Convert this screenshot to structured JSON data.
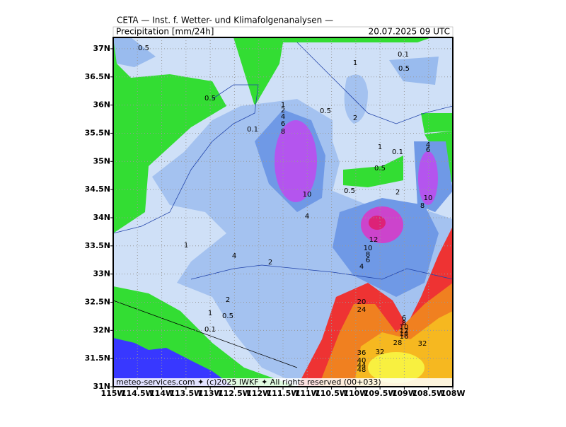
{
  "header": {
    "title": "CETA — Inst. f. Wetter- und Klimafolgenanalysen —",
    "variable": "Precipitation [mm/24h]",
    "valid_time": "20.07.2025 09 UTC"
  },
  "footer": "meteo-services.com ✦ (c)2025 IWKF ✦ All rights reserved (00+033)",
  "map": {
    "xlim": [
      -115,
      -108
    ],
    "ylim": [
      31,
      37.2
    ],
    "xticks": [
      {
        "value": -115,
        "label": "115W"
      },
      {
        "value": -114.5,
        "label": "114.5W"
      },
      {
        "value": -114,
        "label": "114W"
      },
      {
        "value": -113.5,
        "label": "113.5W"
      },
      {
        "value": -113,
        "label": "113W"
      },
      {
        "value": -112.5,
        "label": "112.5W"
      },
      {
        "value": -112,
        "label": "112W"
      },
      {
        "value": -111.5,
        "label": "111.5W"
      },
      {
        "value": -111,
        "label": "111W"
      },
      {
        "value": -110.5,
        "label": "110.5W"
      },
      {
        "value": -110,
        "label": "110W"
      },
      {
        "value": -109.5,
        "label": "109.5W"
      },
      {
        "value": -109,
        "label": "109W"
      },
      {
        "value": -108.5,
        "label": "108.5W"
      },
      {
        "value": -108,
        "label": "108W"
      }
    ],
    "yticks": [
      {
        "value": 31,
        "label": "31N"
      },
      {
        "value": 31.5,
        "label": "31.5N"
      },
      {
        "value": 32,
        "label": "32N"
      },
      {
        "value": 32.5,
        "label": "32.5N"
      },
      {
        "value": 33,
        "label": "33N"
      },
      {
        "value": 33.5,
        "label": "33.5N"
      },
      {
        "value": 34,
        "label": "34N"
      },
      {
        "value": 34.5,
        "label": "34.5N"
      },
      {
        "value": 35,
        "label": "35N"
      },
      {
        "value": 35.5,
        "label": "35.5N"
      },
      {
        "value": 36,
        "label": "36N"
      },
      {
        "value": 36.5,
        "label": "36.5N"
      },
      {
        "value": 37,
        "label": "37N"
      }
    ],
    "grid": true,
    "contour_labels": [
      0.5,
      0.1,
      1,
      0.5,
      0.5,
      1,
      2,
      4,
      6,
      8,
      0.5,
      2,
      0.1,
      1,
      0.1,
      4,
      6,
      0.5,
      10,
      0.5,
      2,
      10,
      8,
      4,
      12,
      1,
      10,
      8,
      6,
      4,
      2,
      4,
      20,
      2,
      24,
      1,
      0.5,
      6,
      8,
      10,
      12,
      14,
      16,
      0.1,
      28,
      32,
      36,
      32,
      40,
      44,
      48
    ]
  }
}
